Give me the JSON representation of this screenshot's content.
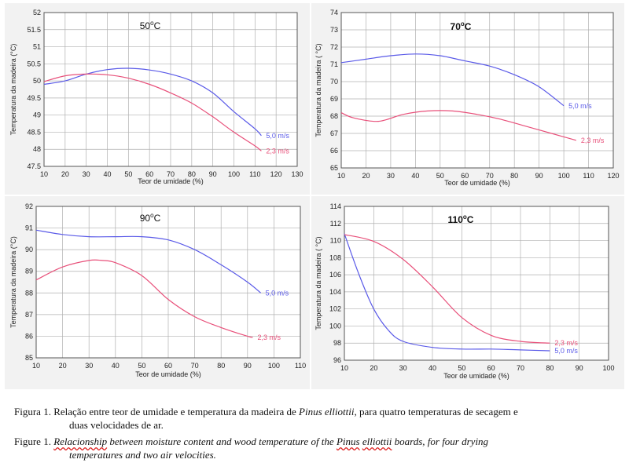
{
  "figure": {
    "colors": {
      "blue": "#5a5ae8",
      "red": "#e8507a",
      "grid": "#b0b0b0",
      "panel_bg": "#f2f2f2",
      "plot_bg": "#ffffff"
    }
  },
  "chart_data": [
    {
      "type": "line",
      "title": "50°C",
      "title_main": "50",
      "title_unit": "oC",
      "xlabel": "Teor de umidade (%)",
      "ylabel": "Temperatura da madeira (°C)",
      "xlim": [
        10,
        130
      ],
      "ylim": [
        47.5,
        52
      ],
      "xticks": [
        10,
        20,
        30,
        40,
        50,
        60,
        70,
        80,
        90,
        100,
        110,
        120,
        130
      ],
      "yticks": [
        47.5,
        48,
        48.5,
        49,
        49.5,
        50,
        50.5,
        51,
        51.5,
        52
      ],
      "ytick_labels": [
        "47.5",
        "48",
        "48.5",
        "49",
        "49.5",
        "50",
        "50.5",
        "51",
        "51.5",
        "52"
      ],
      "grid": true,
      "series": [
        {
          "name": "5,0 m/s",
          "color": "#5a5ae8",
          "x": [
            10,
            20,
            30,
            40,
            50,
            60,
            70,
            80,
            90,
            100,
            110,
            113
          ],
          "y": [
            49.9,
            50.0,
            50.2,
            50.33,
            50.37,
            50.32,
            50.2,
            50.0,
            49.65,
            49.1,
            48.6,
            48.4
          ]
        },
        {
          "name": "2,3 m/s",
          "color": "#e8507a",
          "x": [
            10,
            20,
            30,
            40,
            50,
            60,
            70,
            80,
            90,
            100,
            110,
            113
          ],
          "y": [
            49.98,
            50.15,
            50.2,
            50.18,
            50.08,
            49.9,
            49.65,
            49.35,
            48.95,
            48.5,
            48.1,
            47.95
          ]
        }
      ]
    },
    {
      "type": "line",
      "title": "70°C",
      "title_main": "70",
      "title_unit": "oC",
      "xlabel": "Teor de umidade (%)",
      "ylabel": "Temperatura da madeira ( °C)",
      "xlim": [
        10,
        120
      ],
      "ylim": [
        65,
        74
      ],
      "xticks": [
        10,
        20,
        30,
        40,
        50,
        60,
        70,
        80,
        90,
        100,
        110,
        120
      ],
      "yticks": [
        65,
        66,
        67,
        68,
        69,
        70,
        71,
        72,
        73,
        74
      ],
      "ytick_labels": [
        "65",
        "66",
        "67",
        "68",
        "69",
        "70",
        "71",
        "72",
        "73",
        "74"
      ],
      "grid": true,
      "series": [
        {
          "name": "5,0 m/s",
          "color": "#5a5ae8",
          "x": [
            10,
            20,
            30,
            40,
            50,
            60,
            70,
            80,
            90,
            100
          ],
          "y": [
            71.1,
            71.3,
            71.5,
            71.6,
            71.5,
            71.2,
            70.9,
            70.4,
            69.7,
            68.6
          ]
        },
        {
          "name": "2,3 m/s",
          "color": "#e8507a",
          "x": [
            10,
            15,
            25,
            35,
            45,
            55,
            65,
            75,
            85,
            95,
            105
          ],
          "y": [
            68.2,
            67.9,
            67.7,
            68.1,
            68.3,
            68.3,
            68.1,
            67.8,
            67.4,
            67.0,
            66.6
          ]
        }
      ]
    },
    {
      "type": "line",
      "title": "90°C",
      "title_main": "90",
      "title_unit": "oC",
      "xlabel": "Teor de umidade (%)",
      "ylabel": "Temperatura da madeira (°C)",
      "xlim": [
        10,
        110
      ],
      "ylim": [
        85,
        92
      ],
      "xticks": [
        10,
        20,
        30,
        40,
        50,
        60,
        70,
        80,
        90,
        100,
        110
      ],
      "yticks": [
        85,
        86,
        87,
        88,
        89,
        90,
        91,
        92
      ],
      "ytick_labels": [
        "85",
        "86",
        "87",
        "88",
        "89",
        "90",
        "91",
        "92"
      ],
      "grid": true,
      "series": [
        {
          "name": "5,0 m/s",
          "color": "#5a5ae8",
          "x": [
            10,
            20,
            30,
            40,
            50,
            60,
            70,
            80,
            90,
            95
          ],
          "y": [
            90.9,
            90.7,
            90.6,
            90.6,
            90.6,
            90.45,
            90.0,
            89.3,
            88.5,
            88.0
          ]
        },
        {
          "name": "2,3 m/s",
          "color": "#e8507a",
          "x": [
            10,
            20,
            30,
            35,
            40,
            50,
            60,
            70,
            80,
            90,
            92
          ],
          "y": [
            88.6,
            89.2,
            89.5,
            89.5,
            89.4,
            88.8,
            87.7,
            86.9,
            86.4,
            86.0,
            85.95
          ]
        }
      ]
    },
    {
      "type": "line",
      "title": "110°C",
      "title_main": "110",
      "title_unit": "oC",
      "xlabel": "Teor de umidade (%)",
      "ylabel": "Temperatura da madeira ( °C)",
      "xlim": [
        10,
        100
      ],
      "ylim": [
        96,
        114
      ],
      "xticks": [
        10,
        20,
        30,
        40,
        50,
        60,
        70,
        80,
        90,
        100
      ],
      "yticks": [
        96,
        98,
        100,
        102,
        104,
        106,
        108,
        110,
        112,
        114
      ],
      "ytick_labels": [
        "96",
        "98",
        "100",
        "102",
        "104",
        "106",
        "108",
        "110",
        "112",
        "114"
      ],
      "grid": true,
      "series": [
        {
          "name": "5,0 m/s",
          "color": "#5a5ae8",
          "x": [
            10,
            15,
            20,
            25,
            30,
            40,
            50,
            60,
            70,
            80
          ],
          "y": [
            110.8,
            106,
            102,
            99.5,
            98.2,
            97.5,
            97.3,
            97.3,
            97.2,
            97.1
          ]
        },
        {
          "name": "2,3 m/s",
          "color": "#e8507a",
          "x": [
            10,
            20,
            30,
            40,
            50,
            60,
            70,
            80
          ],
          "y": [
            110.7,
            109.9,
            107.8,
            104.6,
            101.0,
            98.9,
            98.2,
            98.0
          ]
        }
      ]
    }
  ],
  "caption": {
    "pt_label": "Figura 1.",
    "pt_before": "Relação entre teor de umidade e temperatura da madeira de",
    "pt_species": "Pinus elliottii",
    "pt_after_line1": ", para quatro temperaturas de secagem e",
    "pt_line2": "duas velocidades de ar.",
    "en_label": "Figure 1.",
    "en_word_wavy": "Relacionship",
    "en_mid": "between moisture content and wood temperature of the",
    "en_pinus": "Pinus",
    "en_elliottii": "elliottii",
    "en_after_line1": "boards, for four drying",
    "en_line2": "temperatures and two air velocities."
  }
}
